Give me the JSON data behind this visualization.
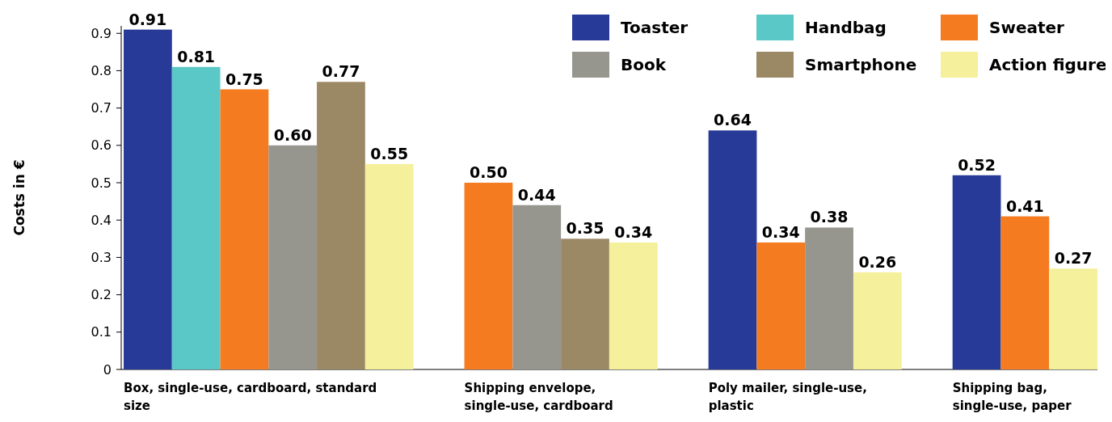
{
  "chart_data": {
    "type": "bar",
    "ylabel": "Costs in €",
    "categories": [
      "Box, single-use, cardboard, standard size",
      "Shipping envelope, single-use, cardboard",
      "Poly mailer, single-use, plastic",
      "Shipping bag, single-use, paper"
    ],
    "series": [
      {
        "name": "Toaster",
        "color": "#283a97",
        "values": [
          0.91,
          null,
          0.64,
          0.52
        ],
        "value_labels": [
          "0.91",
          null,
          "0.64",
          "0.52"
        ]
      },
      {
        "name": "Handbag",
        "color": "#5bc8c8",
        "values": [
          0.81,
          null,
          null,
          null
        ],
        "value_labels": [
          "0.81",
          null,
          null,
          null
        ]
      },
      {
        "name": "Sweater",
        "color": "#f47b20",
        "values": [
          0.75,
          0.5,
          0.34,
          0.41
        ],
        "value_labels": [
          "0.75",
          "0.50",
          "0.34",
          "0.41"
        ]
      },
      {
        "name": "Book",
        "color": "#96968e",
        "values": [
          0.6,
          0.44,
          0.38,
          null
        ],
        "value_labels": [
          "0.60",
          "0.44",
          "0.38",
          null
        ]
      },
      {
        "name": "Smartphone",
        "color": "#9b8865",
        "values": [
          0.77,
          0.35,
          null,
          null
        ],
        "value_labels": [
          "0.77",
          "0.35",
          null,
          null
        ]
      },
      {
        "name": "Action figure",
        "color": "#f5f09c",
        "values": [
          0.55,
          0.34,
          0.26,
          0.27
        ],
        "value_labels": [
          "0.55",
          "0.34",
          "0.26",
          "0.27"
        ]
      }
    ],
    "ylim": [
      0,
      0.92
    ],
    "yticks": [
      0,
      0.1,
      0.2,
      0.3,
      0.4,
      0.5,
      0.6,
      0.7,
      0.8,
      0.9
    ],
    "grid": false,
    "legend": "top right"
  }
}
